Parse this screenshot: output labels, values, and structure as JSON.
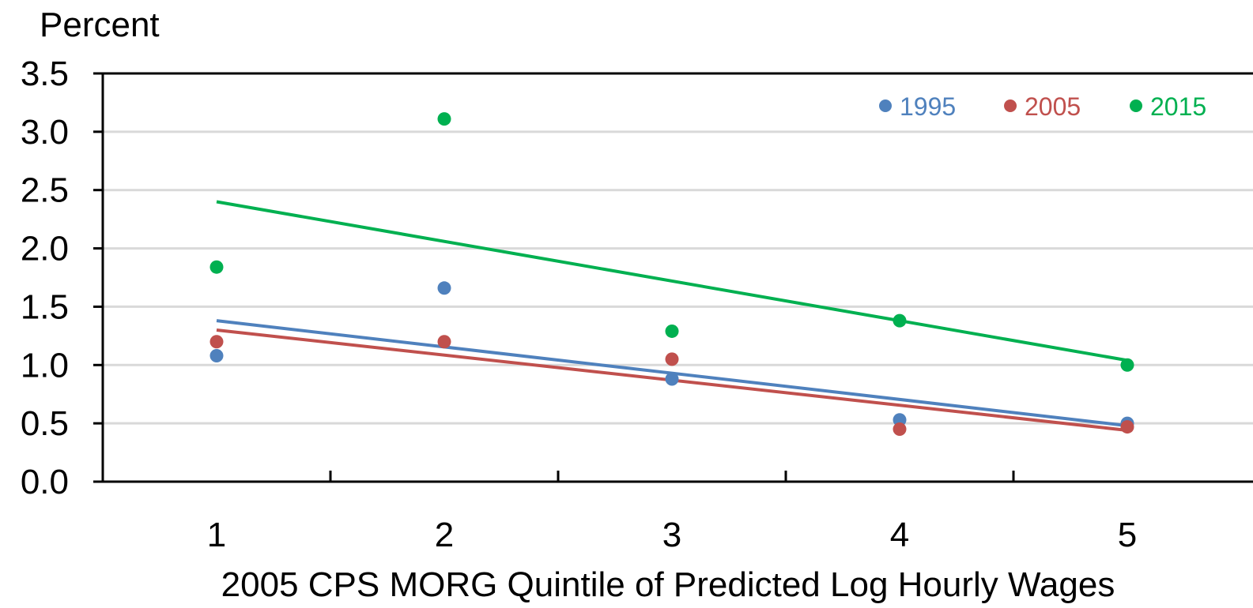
{
  "chart_data": {
    "type": "scatter",
    "ylabel": "Percent",
    "xlabel": "2005 CPS MORG  Quintile of Predicted Log Hourly Wages",
    "x": [
      1,
      2,
      3,
      4,
      5
    ],
    "xtick_labels": [
      "1",
      "2",
      "3",
      "4",
      "5"
    ],
    "ylim": [
      0,
      3.5
    ],
    "yticks": [
      0,
      0.5,
      1.0,
      1.5,
      2.0,
      2.5,
      3.0,
      3.5
    ],
    "ytick_labels": [
      "0.0",
      "0.5",
      "1.0",
      "1.5",
      "2.0",
      "2.5",
      "3.0",
      "3.5"
    ],
    "grid": true,
    "legend": "top-right",
    "series": [
      {
        "name": "1995",
        "color": "#4f81bd",
        "values": [
          1.08,
          1.66,
          0.88,
          0.53,
          0.5
        ],
        "trend": [
          1.38,
          0.48
        ]
      },
      {
        "name": "2005",
        "color": "#c0504d",
        "values": [
          1.2,
          1.2,
          1.05,
          0.45,
          0.47
        ],
        "trend": [
          1.3,
          0.44
        ]
      },
      {
        "name": "2015",
        "color": "#00b050",
        "values": [
          1.84,
          3.11,
          1.29,
          1.38,
          1.0
        ],
        "trend": [
          2.4,
          1.04
        ]
      }
    ]
  }
}
